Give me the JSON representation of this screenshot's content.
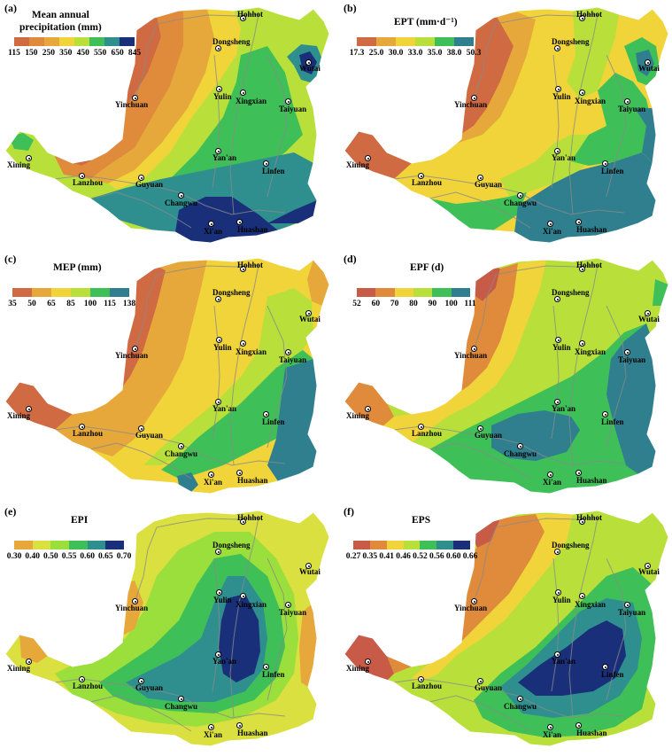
{
  "panels": [
    {
      "label": "(a)",
      "title_lines": [
        "Mean annual",
        "precipitation (mm)"
      ],
      "ticks": [
        "115",
        "150",
        "250",
        "350",
        "450",
        "550",
        "650",
        "845"
      ],
      "colors": [
        "#cf6a43",
        "#e08a3c",
        "#e6a83a",
        "#f0d43a",
        "#b9e03a",
        "#3fbf58",
        "#2f8f8f",
        "#1a2f7a"
      ]
    },
    {
      "label": "(b)",
      "title_lines": [
        "EPT (mm·d⁻¹)"
      ],
      "ticks": [
        "17.3",
        "25.0",
        "30.0",
        "33.0",
        "35.0",
        "38.0",
        "50.3"
      ],
      "colors": [
        "#cf6a43",
        "#e6a83a",
        "#f0d43a",
        "#b9e03a",
        "#3fbf58",
        "#2f7f8f"
      ]
    },
    {
      "label": "(c)",
      "title_lines": [
        "MEP (mm)"
      ],
      "ticks": [
        "35",
        "50",
        "65",
        "85",
        "100",
        "115",
        "138"
      ],
      "colors": [
        "#cf6a43",
        "#e6a83a",
        "#f0d43a",
        "#b9e03a",
        "#3fbf58",
        "#2f7f8f"
      ]
    },
    {
      "label": "(d)",
      "title_lines": [
        "EPF (d)"
      ],
      "ticks": [
        "52",
        "60",
        "70",
        "80",
        "90",
        "100",
        "111"
      ],
      "colors": [
        "#c85a48",
        "#e08a3c",
        "#f0d43a",
        "#b9e03a",
        "#3fbf58",
        "#2f7f8f"
      ]
    },
    {
      "label": "(e)",
      "title_lines": [
        "EPI"
      ],
      "ticks": [
        "0.30",
        "0.40",
        "0.50",
        "0.55",
        "0.60",
        "0.65",
        "0.70"
      ],
      "colors": [
        "#e6a83a",
        "#d9e040",
        "#9adf3c",
        "#3fbf58",
        "#2f8f8f",
        "#1a2f7a"
      ]
    },
    {
      "label": "(f)",
      "title_lines": [
        "EPS"
      ],
      "ticks": [
        "0.27",
        "0.35",
        "0.41",
        "0.46",
        "0.52",
        "0.56",
        "0.60",
        "0.66"
      ],
      "colors": [
        "#c85a48",
        "#e08a3c",
        "#f0d43a",
        "#b9e03a",
        "#3fbf58",
        "#2f8f8f",
        "#1a2f7a"
      ]
    }
  ],
  "cities": [
    "Hohhot",
    "Dongsheng",
    "Wutai",
    "Yinchuan",
    "Yulin",
    "Xingxian",
    "Taiyuan",
    "Yan'an",
    "Xining",
    "Lanzhou",
    "Guyuan",
    "Linfen",
    "Changwu",
    "Huashan",
    "Xi'an"
  ]
}
